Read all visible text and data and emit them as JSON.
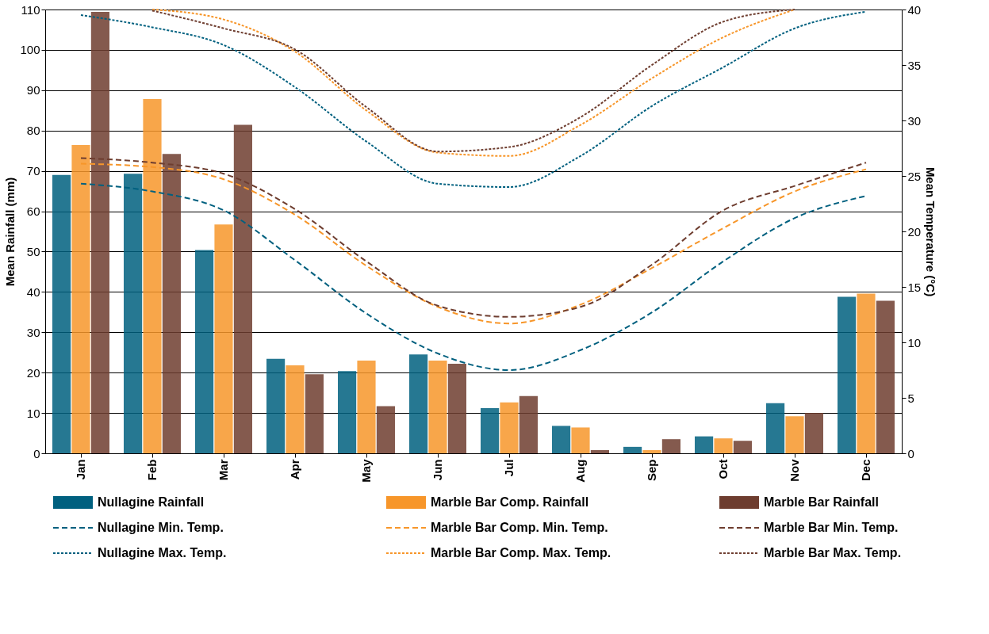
{
  "chart_data": {
    "type": "bar",
    "categories": [
      "Jan",
      "Feb",
      "Mar",
      "Apr",
      "May",
      "Jun",
      "Jul",
      "Aug",
      "Sep",
      "Oct",
      "Nov",
      "Dec"
    ],
    "ylabel": "Mean Rainfall (mm)",
    "y2label": "Mean Temperature (°C)",
    "ylim": [
      0,
      110
    ],
    "yticks": [
      0,
      10,
      20,
      30,
      40,
      50,
      60,
      70,
      80,
      90,
      100,
      110
    ],
    "y2lim": [
      0,
      40
    ],
    "y2ticks": [
      0,
      5,
      10,
      15,
      20,
      25,
      30,
      35,
      40
    ],
    "grid": "y",
    "legend": "bottom",
    "series": [
      {
        "name": "Nullagine Rainfall",
        "color": "#00607f",
        "values": [
          69,
          69.3,
          50.4,
          23.4,
          20.4,
          24.5,
          11.2,
          6.8,
          1.6,
          4.2,
          12.4,
          38.8
        ]
      },
      {
        "name": "Marble Bar Comp. Rainfall",
        "color": "#f7962a",
        "values": [
          76.4,
          87.8,
          56.7,
          21.8,
          23,
          23,
          12.6,
          6.4,
          0.8,
          3.7,
          9.2,
          39.6
        ]
      },
      {
        "name": "Marble Bar Rainfall",
        "color": "#6e3d2f",
        "values": [
          109.4,
          74.2,
          81.4,
          19.6,
          11.7,
          22.2,
          14.2,
          0.8,
          3.5,
          3.1,
          10,
          37.8
        ]
      },
      {
        "name": "Nullagine Min. Temp.",
        "type": "line",
        "axis": "y2",
        "line_style": "dashed",
        "color": "#00607f",
        "values": [
          24.3,
          23.6,
          21.9,
          17.4,
          12.6,
          9.0,
          7.5,
          9.3,
          12.7,
          17.3,
          21.2,
          23.2
        ]
      },
      {
        "name": "Marble Bar Comp. Min. Temp.",
        "type": "line",
        "axis": "y2",
        "line_style": "dashed",
        "color": "#f7962a",
        "values": [
          26.1,
          25.8,
          24.7,
          21.5,
          16.9,
          13.2,
          11.7,
          13.4,
          16.7,
          20.3,
          23.6,
          25.6
        ]
      },
      {
        "name": "Marble Bar Min. Temp.",
        "type": "line",
        "axis": "y2",
        "line_style": "dashed",
        "color": "#6e3d2f",
        "values": [
          26.6,
          26.2,
          25.2,
          22.0,
          17.3,
          13.3,
          12.3,
          13.2,
          17.0,
          21.9,
          24.1,
          26.2
        ]
      },
      {
        "name": "Nullagine Max. Temp.",
        "type": "line",
        "axis": "y2",
        "line_style": "dotted",
        "color": "#00607f",
        "values": [
          39.5,
          38.4,
          36.8,
          33.0,
          28.1,
          24.3,
          24.0,
          26.8,
          31.3,
          34.8,
          38.3,
          39.8
        ]
      },
      {
        "name": "Marble Bar Comp. Max. Temp.",
        "type": "line",
        "axis": "y2",
        "line_style": "dotted",
        "color": "#f7962a",
        "values": [
          null,
          40.0,
          39.1,
          36.2,
          30.9,
          27.1,
          26.8,
          29.6,
          33.8,
          37.5,
          40.0,
          null
        ]
      },
      {
        "name": "Marble Bar Max. Temp.",
        "type": "line",
        "axis": "y2",
        "line_style": "dotted",
        "color": "#6e3d2f",
        "values": [
          null,
          39.9,
          38.3,
          36.4,
          31.2,
          27.2,
          27.6,
          30.3,
          35.0,
          38.9,
          40.0,
          null
        ]
      }
    ]
  }
}
